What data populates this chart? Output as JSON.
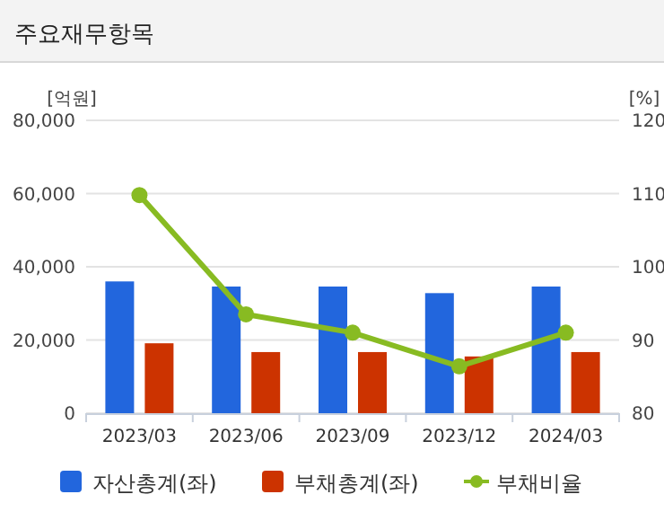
{
  "chart_data": {
    "type": "bar",
    "title": "주요재무항목",
    "ylabel": "[억원]",
    "y2label": "[%]",
    "categories": [
      "2023/03",
      "2023/06",
      "2023/09",
      "2023/12",
      "2024/03"
    ],
    "series": [
      {
        "name": "자산총계(좌)",
        "color": "#2266dd",
        "values": [
          36000,
          34600,
          34600,
          32800,
          34600
        ]
      },
      {
        "name": "부채총계(좌)",
        "color": "#cc3300",
        "values": [
          19100,
          16700,
          16700,
          15500,
          16700
        ]
      },
      {
        "name": "부채비율",
        "type": "line",
        "axis": "y2",
        "color": "#88bb22",
        "marker": "circle",
        "values": [
          109.8,
          93.5,
          91.0,
          86.4,
          91.0
        ]
      }
    ],
    "ylim": [
      0,
      80000
    ],
    "yticks": [
      {
        "value": 0,
        "label": "0"
      },
      {
        "value": 20000,
        "label": "20,000"
      },
      {
        "value": 40000,
        "label": "40,000"
      },
      {
        "value": 60000,
        "label": "60,000"
      },
      {
        "value": 80000,
        "label": "80,000"
      }
    ],
    "y2lim": [
      80,
      120
    ],
    "y2ticks": [
      80,
      90,
      100,
      110,
      120
    ],
    "grid": "y",
    "legend": "bottom"
  }
}
